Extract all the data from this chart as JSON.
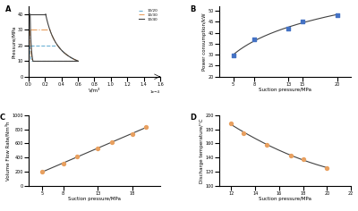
{
  "panel_A": {
    "label": "A",
    "pv_curves": [
      {
        "label": "10/20",
        "color": "#6ab0d4",
        "linestyle": "--",
        "p_suction": 10,
        "p_discharge": 20
      },
      {
        "label": "10/30",
        "color": "#e8a060",
        "linestyle": "-.",
        "p_suction": 10,
        "p_discharge": 30
      },
      {
        "label": "10/40",
        "color": "#404040",
        "linestyle": "-",
        "p_suction": 10,
        "p_discharge": 40
      }
    ],
    "xlabel": "V/m³",
    "ylabel": "Pressure/MPa",
    "xlim": [
      0,
      0.00016
    ],
    "ylim": [
      0,
      45
    ]
  },
  "panel_B": {
    "label": "B",
    "x": [
      5,
      8,
      13,
      15,
      20
    ],
    "y": [
      29.5,
      37.0,
      42.0,
      45.0,
      48.0
    ],
    "line_color": "#404040",
    "marker_color": "#4472c4",
    "marker": "s",
    "xlabel": "Suction pressure/MPa",
    "ylabel": "Power consumption/kW",
    "xlim": [
      3,
      22
    ],
    "ylim": [
      20,
      52
    ]
  },
  "panel_C": {
    "label": "C",
    "x": [
      5,
      8,
      10,
      13,
      15,
      18,
      20
    ],
    "y": [
      195,
      320,
      420,
      530,
      620,
      730,
      840
    ],
    "line_color": "#404040",
    "marker_color": "#e8a060",
    "marker": "o",
    "xlabel": "Suction pressure/MPa",
    "ylabel": "Volume Flow Rate/Nm³h",
    "xlim": [
      3,
      22
    ],
    "ylim": [
      0,
      1000
    ]
  },
  "panel_D": {
    "label": "D",
    "x": [
      12,
      13,
      15,
      17,
      18,
      20
    ],
    "y": [
      188,
      175,
      158,
      143,
      138,
      125
    ],
    "line_color": "#404040",
    "marker_color": "#e8a060",
    "marker": "o",
    "xlabel": "Suction pressure/MPa",
    "ylabel": "Discharge temperature/°C",
    "xlim": [
      11,
      22
    ],
    "ylim": [
      100,
      200
    ]
  }
}
